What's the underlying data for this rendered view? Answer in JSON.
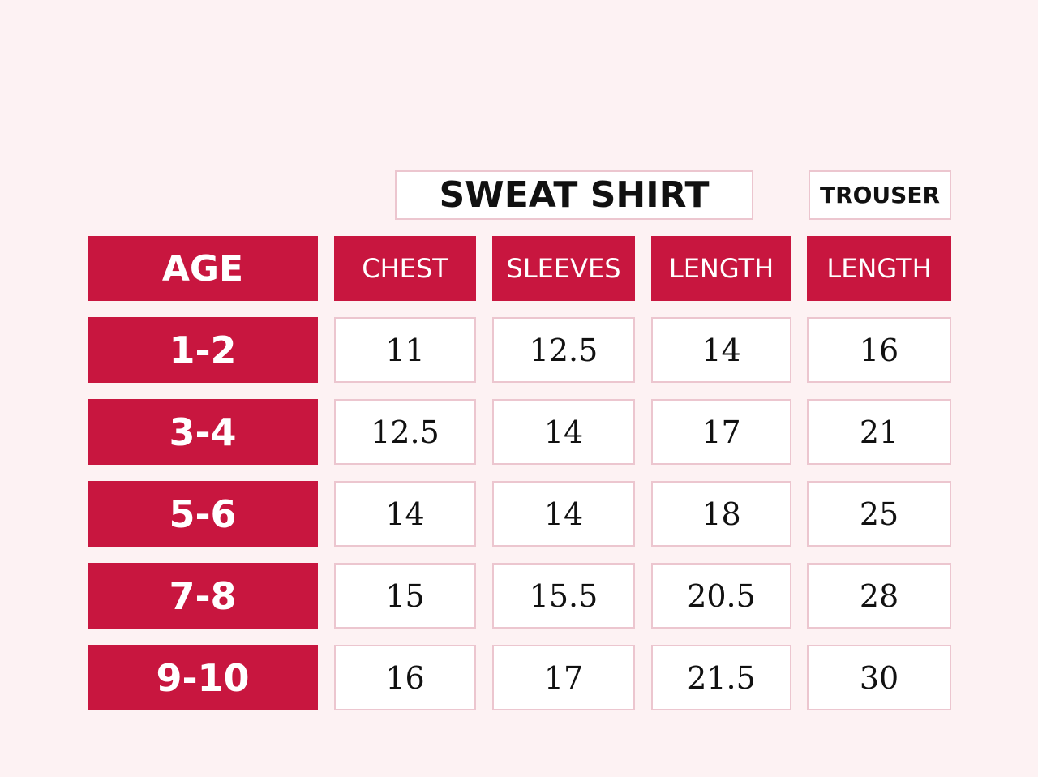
{
  "groups": [
    "SWEAT SHIRT",
    "TROUSER"
  ],
  "table": {
    "header": [
      "AGE",
      "CHEST",
      "SLEEVES",
      "LENGTH",
      "LENGTH"
    ],
    "rows": [
      [
        "1-2",
        11,
        12.5,
        14,
        16
      ],
      [
        "3-4",
        12.5,
        14,
        17,
        21
      ],
      [
        "5-6",
        14,
        14,
        18,
        25
      ],
      [
        "7-8",
        15,
        15.5,
        20.5,
        28
      ],
      [
        "9-10",
        16,
        17,
        21.5,
        30
      ]
    ]
  }
}
